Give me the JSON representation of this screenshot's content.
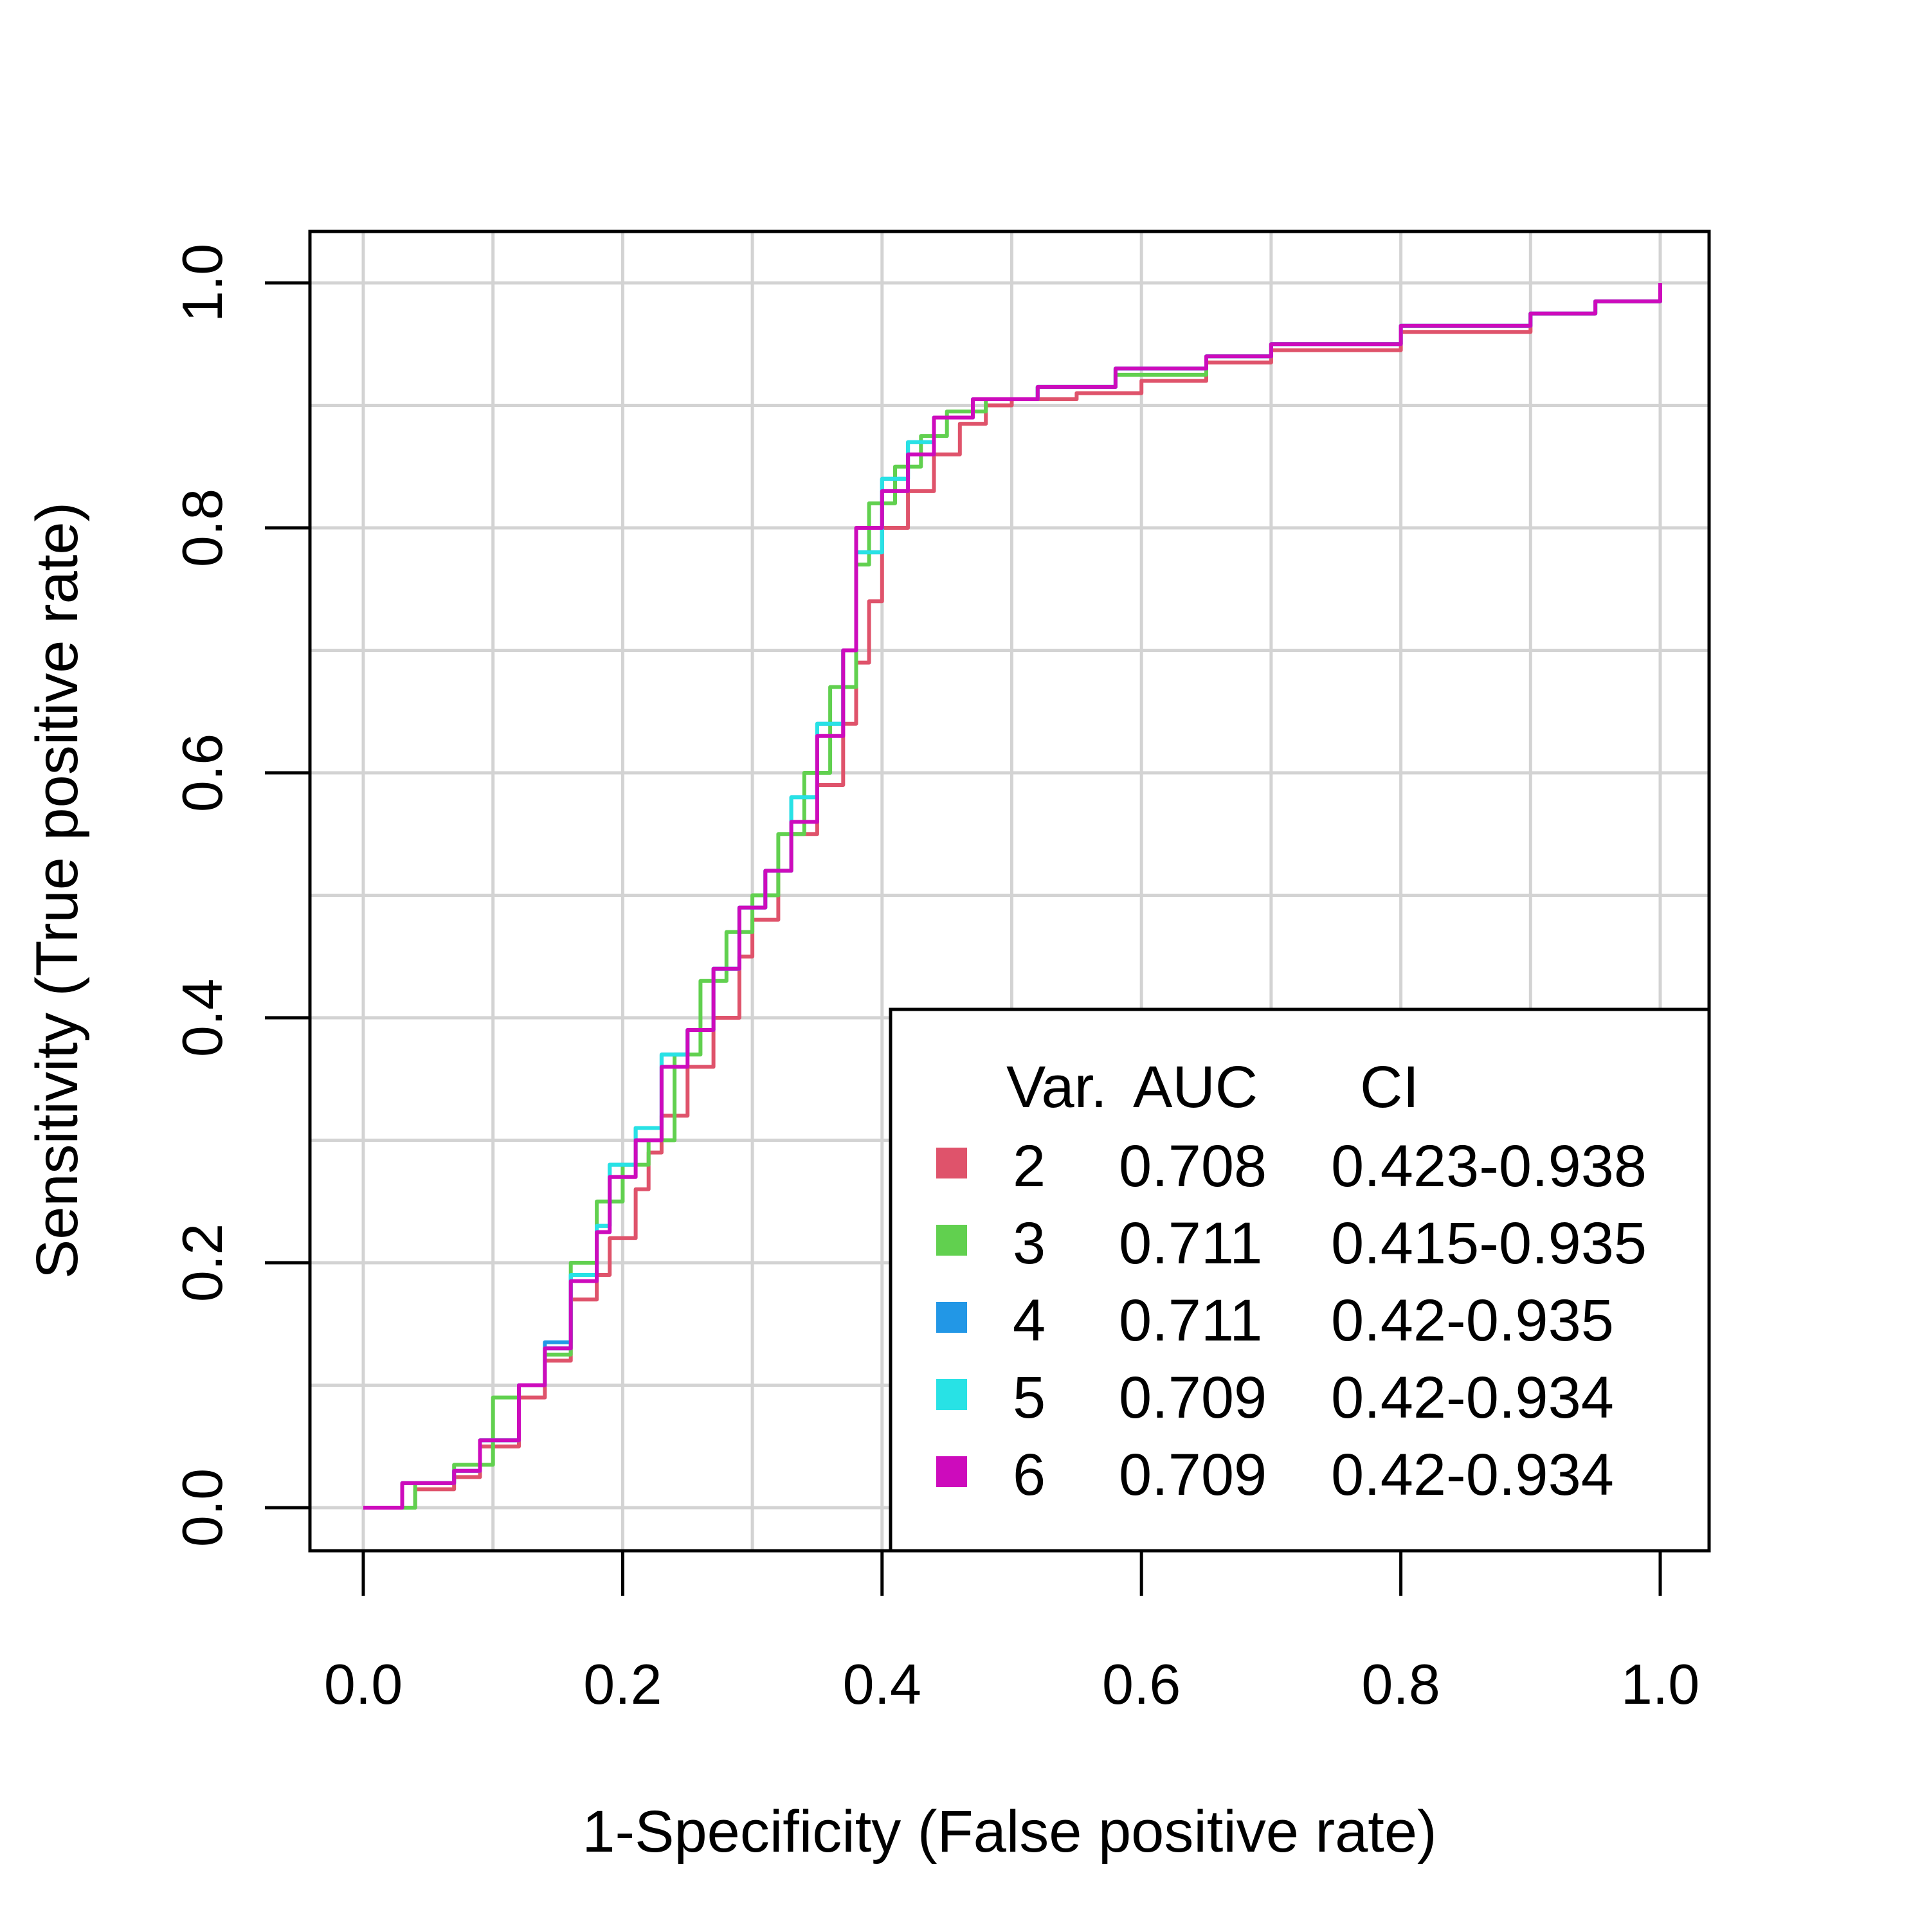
{
  "chart_data": {
    "type": "line",
    "title": "",
    "xlabel": "1-Specificity (False positive rate)",
    "ylabel": "Sensitivity (True positive rate)",
    "xlim": [
      0.0,
      1.0
    ],
    "ylim": [
      0.0,
      1.0
    ],
    "x_ticks": [
      "0.0",
      "0.2",
      "0.4",
      "0.6",
      "0.8",
      "1.0"
    ],
    "y_ticks": [
      "0.0",
      "0.2",
      "0.4",
      "0.6",
      "0.8",
      "1.0"
    ],
    "grid": true,
    "legend": {
      "position": "bottom-right",
      "headers": [
        "Var.",
        "AUC",
        "CI"
      ],
      "entries": [
        {
          "var": "2",
          "auc": "0.708",
          "ci": "0.423-0.938",
          "color": "#DF536B"
        },
        {
          "var": "3",
          "auc": "0.711",
          "ci": "0.415-0.935",
          "color": "#61D04F"
        },
        {
          "var": "4",
          "auc": "0.711",
          "ci": "0.42-0.935",
          "color": "#2297E6"
        },
        {
          "var": "5",
          "auc": "0.709",
          "ci": "0.42-0.934",
          "color": "#28E2E5"
        },
        {
          "var": "6",
          "auc": "0.709",
          "ci": "0.42-0.934",
          "color": "#CD0BBC"
        }
      ]
    },
    "series": [
      {
        "color": "#DF536B",
        "points": [
          [
            0.0,
            0.0
          ],
          [
            0.02,
            0.0
          ],
          [
            0.04,
            0.015
          ],
          [
            0.07,
            0.025
          ],
          [
            0.09,
            0.05
          ],
          [
            0.12,
            0.09
          ],
          [
            0.14,
            0.12
          ],
          [
            0.16,
            0.17
          ],
          [
            0.18,
            0.19
          ],
          [
            0.19,
            0.22
          ],
          [
            0.21,
            0.26
          ],
          [
            0.22,
            0.29
          ],
          [
            0.23,
            0.32
          ],
          [
            0.25,
            0.36
          ],
          [
            0.27,
            0.4
          ],
          [
            0.29,
            0.45
          ],
          [
            0.3,
            0.48
          ],
          [
            0.32,
            0.52
          ],
          [
            0.33,
            0.55
          ],
          [
            0.35,
            0.59
          ],
          [
            0.37,
            0.64
          ],
          [
            0.38,
            0.69
          ],
          [
            0.39,
            0.74
          ],
          [
            0.4,
            0.8
          ],
          [
            0.42,
            0.83
          ],
          [
            0.44,
            0.86
          ],
          [
            0.46,
            0.885
          ],
          [
            0.48,
            0.9
          ],
          [
            0.5,
            0.905
          ],
          [
            0.55,
            0.91
          ],
          [
            0.6,
            0.92
          ],
          [
            0.65,
            0.935
          ],
          [
            0.7,
            0.945
          ],
          [
            0.8,
            0.96
          ],
          [
            0.9,
            0.975
          ],
          [
            0.95,
            0.985
          ],
          [
            1.0,
            1.0
          ]
        ]
      },
      {
        "color": "#61D04F",
        "points": [
          [
            0.0,
            0.0
          ],
          [
            0.02,
            0.0
          ],
          [
            0.04,
            0.02
          ],
          [
            0.07,
            0.035
          ],
          [
            0.1,
            0.09
          ],
          [
            0.12,
            0.1
          ],
          [
            0.14,
            0.125
          ],
          [
            0.16,
            0.2
          ],
          [
            0.18,
            0.25
          ],
          [
            0.2,
            0.28
          ],
          [
            0.22,
            0.3
          ],
          [
            0.24,
            0.37
          ],
          [
            0.26,
            0.43
          ],
          [
            0.28,
            0.47
          ],
          [
            0.3,
            0.5
          ],
          [
            0.32,
            0.55
          ],
          [
            0.34,
            0.6
          ],
          [
            0.36,
            0.67
          ],
          [
            0.38,
            0.77
          ],
          [
            0.39,
            0.82
          ],
          [
            0.41,
            0.85
          ],
          [
            0.43,
            0.875
          ],
          [
            0.45,
            0.895
          ],
          [
            0.48,
            0.905
          ],
          [
            0.52,
            0.915
          ],
          [
            0.58,
            0.925
          ],
          [
            0.65,
            0.94
          ],
          [
            0.7,
            0.95
          ],
          [
            0.8,
            0.965
          ],
          [
            0.9,
            0.975
          ],
          [
            0.95,
            0.985
          ],
          [
            1.0,
            1.0
          ]
        ]
      },
      {
        "color": "#2297E6",
        "points": [
          [
            0.0,
            0.0
          ],
          [
            0.02,
            0.0
          ],
          [
            0.03,
            0.02
          ],
          [
            0.07,
            0.03
          ],
          [
            0.09,
            0.055
          ],
          [
            0.12,
            0.1
          ],
          [
            0.14,
            0.135
          ],
          [
            0.16,
            0.19
          ],
          [
            0.18,
            0.23
          ],
          [
            0.19,
            0.28
          ],
          [
            0.21,
            0.31
          ],
          [
            0.23,
            0.37
          ],
          [
            0.25,
            0.39
          ],
          [
            0.27,
            0.44
          ],
          [
            0.29,
            0.49
          ],
          [
            0.31,
            0.52
          ],
          [
            0.33,
            0.58
          ],
          [
            0.35,
            0.64
          ],
          [
            0.37,
            0.7
          ],
          [
            0.38,
            0.78
          ],
          [
            0.4,
            0.84
          ],
          [
            0.42,
            0.87
          ],
          [
            0.44,
            0.89
          ],
          [
            0.47,
            0.905
          ],
          [
            0.52,
            0.915
          ],
          [
            0.58,
            0.93
          ],
          [
            0.65,
            0.94
          ],
          [
            0.7,
            0.95
          ],
          [
            0.8,
            0.965
          ],
          [
            0.9,
            0.975
          ],
          [
            0.95,
            0.985
          ],
          [
            1.0,
            1.0
          ]
        ]
      },
      {
        "color": "#28E2E5",
        "points": [
          [
            0.0,
            0.0
          ],
          [
            0.02,
            0.0
          ],
          [
            0.03,
            0.02
          ],
          [
            0.07,
            0.03
          ],
          [
            0.09,
            0.055
          ],
          [
            0.12,
            0.1
          ],
          [
            0.14,
            0.13
          ],
          [
            0.16,
            0.19
          ],
          [
            0.18,
            0.23
          ],
          [
            0.19,
            0.28
          ],
          [
            0.21,
            0.31
          ],
          [
            0.23,
            0.37
          ],
          [
            0.25,
            0.39
          ],
          [
            0.27,
            0.44
          ],
          [
            0.29,
            0.49
          ],
          [
            0.31,
            0.52
          ],
          [
            0.33,
            0.58
          ],
          [
            0.35,
            0.64
          ],
          [
            0.37,
            0.7
          ],
          [
            0.38,
            0.78
          ],
          [
            0.4,
            0.84
          ],
          [
            0.42,
            0.87
          ],
          [
            0.44,
            0.89
          ],
          [
            0.47,
            0.905
          ],
          [
            0.52,
            0.915
          ],
          [
            0.58,
            0.93
          ],
          [
            0.65,
            0.94
          ],
          [
            0.7,
            0.95
          ],
          [
            0.8,
            0.965
          ],
          [
            0.9,
            0.975
          ],
          [
            0.95,
            0.985
          ],
          [
            1.0,
            1.0
          ]
        ]
      },
      {
        "color": "#CD0BBC",
        "points": [
          [
            0.0,
            0.0
          ],
          [
            0.02,
            0.0
          ],
          [
            0.03,
            0.02
          ],
          [
            0.07,
            0.03
          ],
          [
            0.09,
            0.055
          ],
          [
            0.12,
            0.1
          ],
          [
            0.14,
            0.13
          ],
          [
            0.16,
            0.185
          ],
          [
            0.18,
            0.225
          ],
          [
            0.19,
            0.27
          ],
          [
            0.21,
            0.3
          ],
          [
            0.23,
            0.36
          ],
          [
            0.25,
            0.39
          ],
          [
            0.27,
            0.44
          ],
          [
            0.29,
            0.49
          ],
          [
            0.31,
            0.52
          ],
          [
            0.33,
            0.56
          ],
          [
            0.35,
            0.63
          ],
          [
            0.37,
            0.7
          ],
          [
            0.38,
            0.8
          ],
          [
            0.4,
            0.83
          ],
          [
            0.42,
            0.86
          ],
          [
            0.44,
            0.89
          ],
          [
            0.47,
            0.905
          ],
          [
            0.52,
            0.915
          ],
          [
            0.58,
            0.93
          ],
          [
            0.65,
            0.94
          ],
          [
            0.7,
            0.95
          ],
          [
            0.8,
            0.965
          ],
          [
            0.9,
            0.975
          ],
          [
            0.95,
            0.985
          ],
          [
            1.0,
            1.0
          ]
        ]
      }
    ]
  }
}
